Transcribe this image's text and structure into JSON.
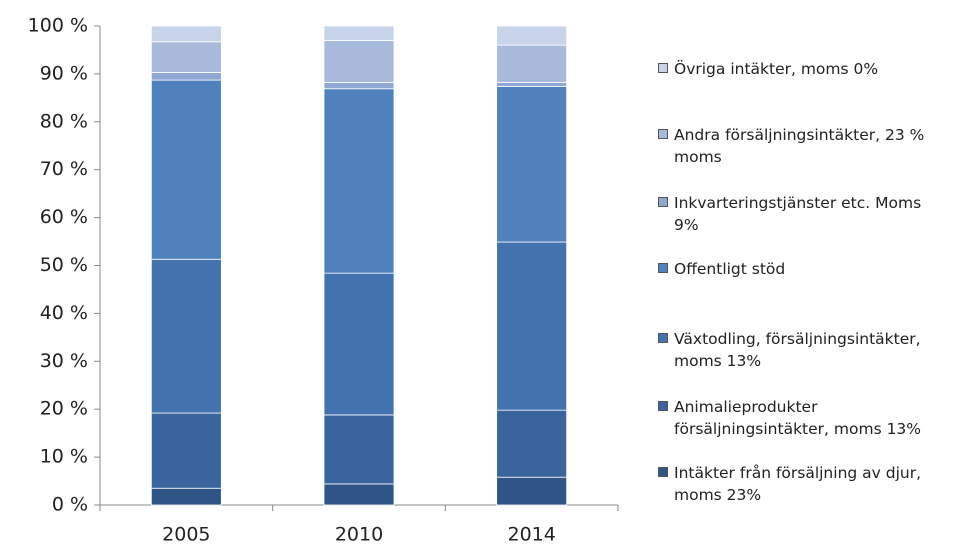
{
  "chart_data": {
    "type": "bar",
    "stacked": true,
    "categories": [
      "2005",
      "2010",
      "2014"
    ],
    "series": [
      {
        "name": "Intäkter från försäljning av djur, moms 23%",
        "color": "#2f5586",
        "values": [
          3.5,
          4.4,
          5.8
        ]
      },
      {
        "name": "Animalieprodukter försäljningsintäkter, moms 13%",
        "color": "#39649c",
        "values": [
          15.7,
          14.4,
          14.0
        ]
      },
      {
        "name": "Växtodling, försäljningsintäkter, moms 13%",
        "color": "#4373ae",
        "values": [
          32.1,
          29.6,
          35.1
        ]
      },
      {
        "name": "Offentligt stöd",
        "color": "#4f81bd",
        "values": [
          37.4,
          38.5,
          32.5
        ]
      },
      {
        "name": "Inkvarteringstjänster etc. Moms 9%",
        "color": "#8ea8d3",
        "values": [
          1.6,
          1.3,
          0.8
        ]
      },
      {
        "name": "Andra försäljningsintäkter, 23 % moms",
        "color": "#a8badc",
        "values": [
          6.4,
          8.8,
          7.8
        ]
      },
      {
        "name": "Övriga intäkter, moms 0%",
        "color": "#c6d3e8",
        "values": [
          3.3,
          3.0,
          4.0
        ]
      }
    ],
    "ylim": [
      0,
      100
    ],
    "yticks": [
      {
        "value": 0,
        "label": "0 %"
      },
      {
        "value": 10,
        "label": "10 %"
      },
      {
        "value": 20,
        "label": "20 %"
      },
      {
        "value": 30,
        "label": "30 %"
      },
      {
        "value": 40,
        "label": "40 %"
      },
      {
        "value": 50,
        "label": "50 %"
      },
      {
        "value": 60,
        "label": "60 %"
      },
      {
        "value": 70,
        "label": "70 %"
      },
      {
        "value": 80,
        "label": "80 %"
      },
      {
        "value": 90,
        "label": "90 %"
      },
      {
        "value": 100,
        "label": "100 %"
      }
    ],
    "grid": false,
    "legend": "right"
  }
}
